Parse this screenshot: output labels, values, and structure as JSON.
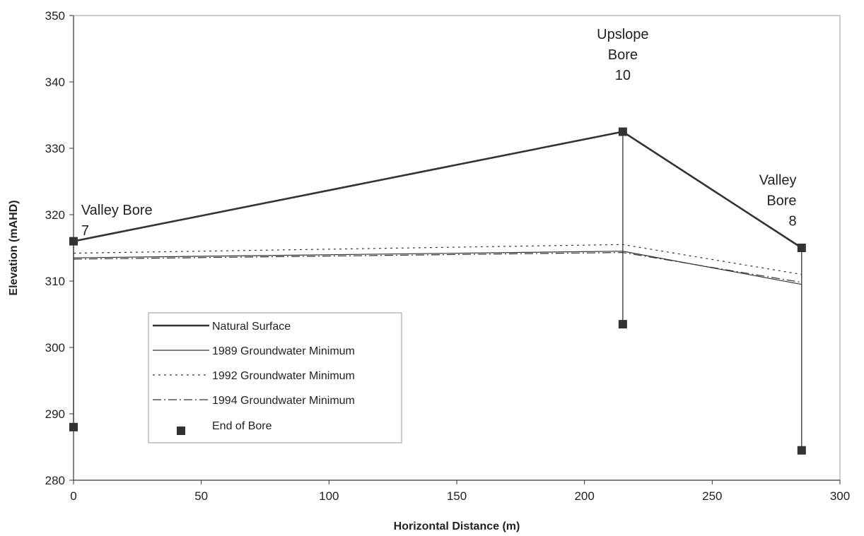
{
  "chart_data": {
    "type": "line",
    "xlabel": "Horizontal Distance (m)",
    "ylabel": "Elevation (mAHD)",
    "xlim": [
      0,
      300
    ],
    "ylim": [
      280,
      350
    ],
    "xticks": [
      0,
      50,
      100,
      150,
      200,
      250,
      300
    ],
    "yticks": [
      280,
      290,
      300,
      310,
      320,
      330,
      340,
      350
    ],
    "grid": false,
    "legend_position": "lower-left",
    "series": [
      {
        "name": "Natural Surface",
        "style": "solid-thick",
        "color": "#333333",
        "x": [
          0,
          215,
          285
        ],
        "y": [
          316,
          332.5,
          315
        ]
      },
      {
        "name": "1989 Groundwater Minimum",
        "style": "solid-thin",
        "color": "#333333",
        "x": [
          0,
          215,
          285
        ],
        "y": [
          313.5,
          314.5,
          309.5
        ]
      },
      {
        "name": "1992 Groundwater Minimum",
        "style": "dotted",
        "color": "#333333",
        "x": [
          0,
          215,
          285
        ],
        "y": [
          314.2,
          315.5,
          311
        ]
      },
      {
        "name": "1994 Groundwater Minimum",
        "style": "dash-dot",
        "color": "#333333",
        "x": [
          0,
          215,
          285
        ],
        "y": [
          313.3,
          314.3,
          309.8
        ]
      },
      {
        "name": "End of Bore",
        "style": "marker",
        "color": "#333333",
        "x": [
          0,
          215,
          285
        ],
        "y": [
          288,
          303.5,
          284.5
        ]
      }
    ],
    "bores": [
      {
        "x": 0,
        "top": 316,
        "bottom": 288
      },
      {
        "x": 215,
        "top": 332.5,
        "bottom": 303.5
      },
      {
        "x": 285,
        "top": 315,
        "bottom": 284.5
      }
    ],
    "annotations": [
      {
        "lines": [
          "Valley Bore",
          "7"
        ],
        "x": 3,
        "y": 320,
        "align": "start"
      },
      {
        "lines": [
          "Upslope",
          "Bore",
          "10"
        ],
        "x": 215,
        "y": 346.5,
        "align": "middle"
      },
      {
        "lines": [
          "Valley",
          "Bore",
          "8"
        ],
        "x": 283,
        "y": 324.5,
        "align": "end"
      }
    ]
  }
}
